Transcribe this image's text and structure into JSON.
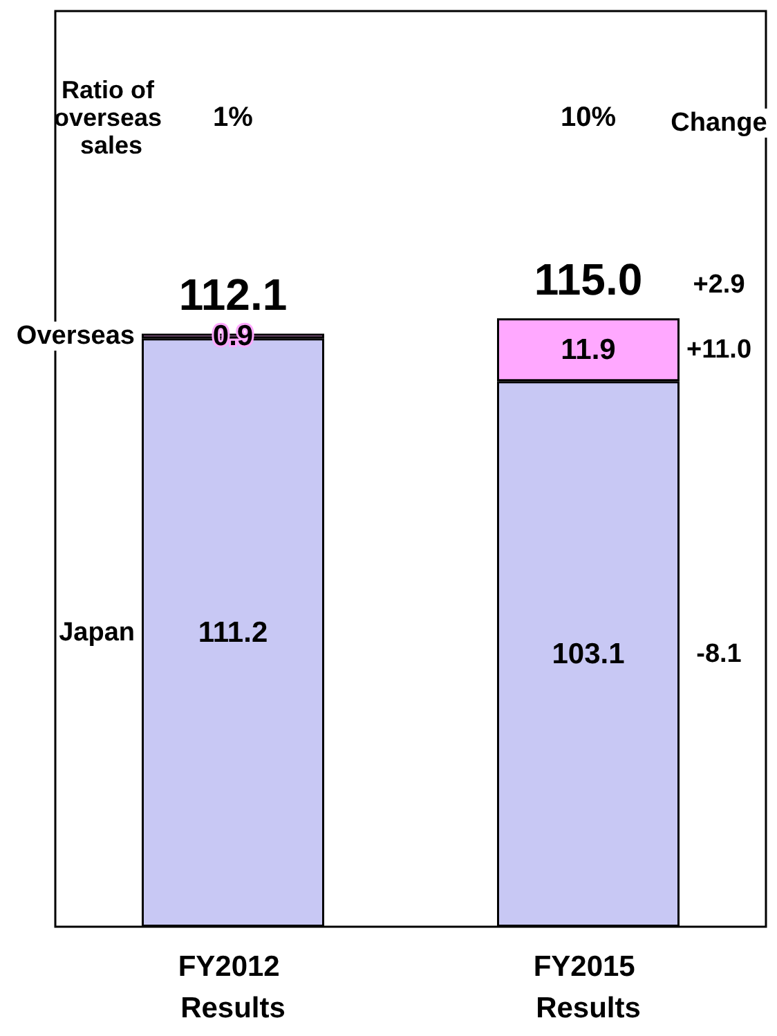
{
  "chart_data": {
    "type": "bar",
    "stacked": true,
    "data_labels": true,
    "categories": [
      "FY2012 Results",
      "FY2015 Results"
    ],
    "series": [
      {
        "name": "Japan",
        "color": "#c8c8f4",
        "values": [
          111.2,
          103.1
        ]
      },
      {
        "name": "Overseas",
        "color": "#ffa8ff",
        "values": [
          0.9,
          11.9
        ]
      }
    ],
    "totals": [
      "112.1",
      "115.0"
    ],
    "annotations": [
      "Ratio of overseas sales",
      "1%",
      "10%",
      "Change",
      "+2.9",
      "+11.0",
      "-8.1"
    ]
  }
}
